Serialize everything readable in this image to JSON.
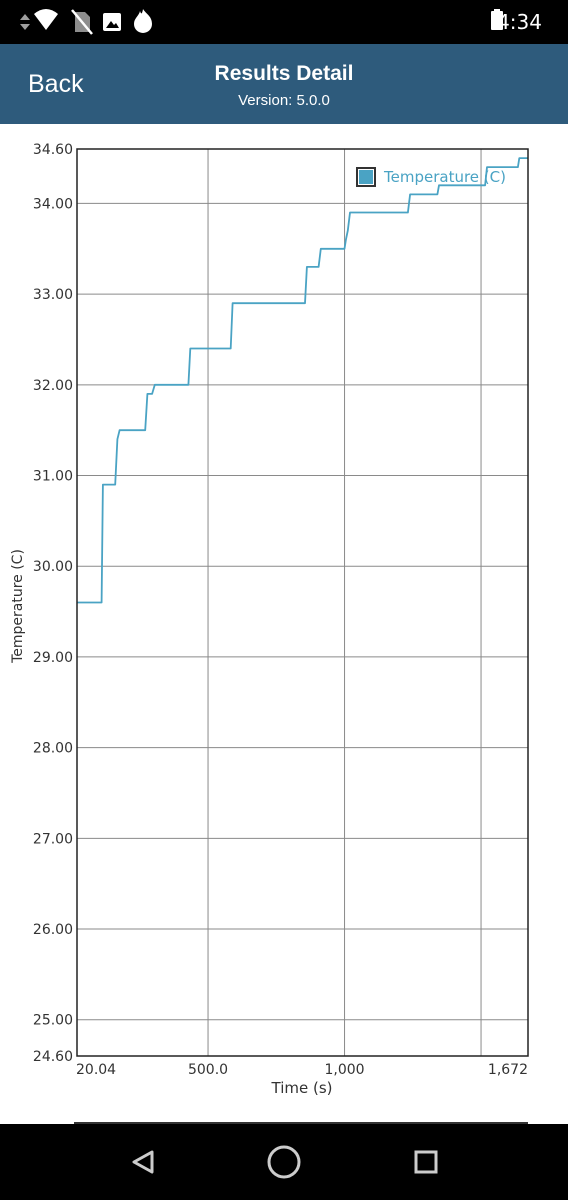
{
  "status_bar": {
    "time": "4:34",
    "icons": [
      "data-arrows-icon",
      "wifi-icon",
      "no-sim-icon",
      "image-icon",
      "flame-icon",
      "battery-icon"
    ]
  },
  "header": {
    "back_label": "Back",
    "title": "Results Detail",
    "version": "Version: 5.0.0",
    "background": "#2e5b7c"
  },
  "chart_data": {
    "type": "line",
    "xlabel": "Time (s)",
    "ylabel": "Temperature (C)",
    "xlim": [
      20.04,
      1672
    ],
    "ylim": [
      24.6,
      34.6
    ],
    "x_ticks": [
      20.04,
      500,
      1000,
      1672
    ],
    "x_tick_labels": [
      "20.04",
      "500.0",
      "1,000",
      "1,672"
    ],
    "x_gridlines": [
      20.04,
      500,
      1000,
      1500,
      1672
    ],
    "y_ticks": [
      24.6,
      25,
      26,
      27,
      28,
      29,
      30,
      31,
      32,
      33,
      34,
      34.6
    ],
    "y_tick_labels": [
      "24.60",
      "25.00",
      "26.00",
      "27.00",
      "28.00",
      "29.00",
      "30.00",
      "31.00",
      "32.00",
      "33.00",
      "34.00",
      "34.60"
    ],
    "grid": true,
    "legend_position": "top-right",
    "series": [
      {
        "name": "Temperature (C)",
        "color": "#4aa3c4",
        "points": [
          [
            20.04,
            29.6
          ],
          [
            110,
            29.6
          ],
          [
            115,
            30.9
          ],
          [
            160,
            30.9
          ],
          [
            168,
            31.4
          ],
          [
            176,
            31.5
          ],
          [
            270,
            31.5
          ],
          [
            278,
            31.9
          ],
          [
            295,
            31.9
          ],
          [
            305,
            32.0
          ],
          [
            428,
            32.0
          ],
          [
            435,
            32.4
          ],
          [
            583,
            32.4
          ],
          [
            590,
            32.9
          ],
          [
            855,
            32.9
          ],
          [
            862,
            33.3
          ],
          [
            905,
            33.3
          ],
          [
            913,
            33.5
          ],
          [
            1000,
            33.5
          ],
          [
            1005,
            33.6
          ],
          [
            1012,
            33.7
          ],
          [
            1020,
            33.9
          ],
          [
            1232,
            33.9
          ],
          [
            1240,
            34.1
          ],
          [
            1340,
            34.1
          ],
          [
            1346,
            34.2
          ],
          [
            1515,
            34.2
          ],
          [
            1522,
            34.4
          ],
          [
            1635,
            34.4
          ],
          [
            1640,
            34.5
          ],
          [
            1672,
            34.5
          ]
        ]
      }
    ]
  },
  "nav_bar": {
    "buttons": [
      "back-triangle-icon",
      "home-circle-icon",
      "overview-square-icon"
    ]
  }
}
